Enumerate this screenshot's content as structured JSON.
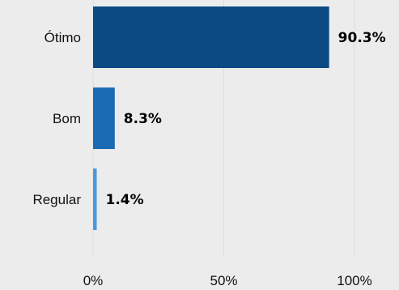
{
  "chart_data": {
    "type": "bar",
    "orientation": "horizontal",
    "title": "",
    "xlabel": "",
    "ylabel": "",
    "categories": [
      "Ótimo",
      "Bom",
      "Regular"
    ],
    "values": [
      90.3,
      8.3,
      1.4
    ],
    "value_labels": [
      "90.3%",
      "8.3%",
      "1.4%"
    ],
    "colors": [
      "#0b4a82",
      "#1b6bb4",
      "#4a98dc"
    ],
    "xlim": [
      0,
      100
    ],
    "xticks": [
      0,
      50,
      100
    ],
    "xtick_labels": [
      "0%",
      "50%",
      "100%"
    ],
    "grid": true,
    "legend": "none",
    "background": "#ececec"
  }
}
